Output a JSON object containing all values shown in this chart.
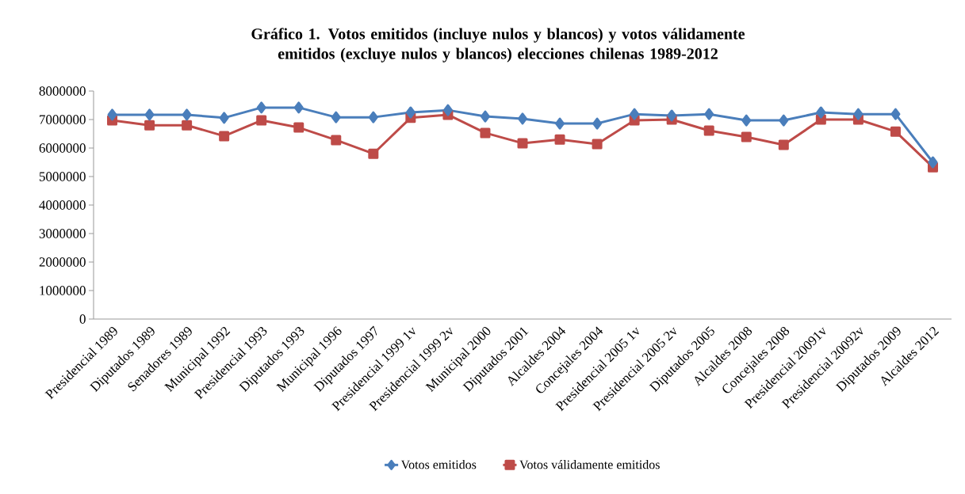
{
  "chart_data": {
    "type": "line",
    "title": "Gráfico 1. Votos emitidos (incluye nulos y blancos) y votos válidamente emitidos (excluye nulos y blancos) elecciones chilenas 1989-2012",
    "categories": [
      "Presidencial 1989",
      "Diputados 1989",
      "Senadores 1989",
      "Municipal 1992",
      "Presidencial 1993",
      "Diputados 1993",
      "Municipal 1996",
      "Diputados 1997",
      "Presidencial 1999 1v",
      "Presidencial 1999 2v",
      "Municipal 2000",
      "Diputados 2001",
      "Alcaldes 2004",
      "Concejales 2004",
      "Presidencial 2005 1v",
      "Presidencial 2005 2v",
      "Diputados 2005",
      "Alcaldes 2008",
      "Concejales 2008",
      "Presidencial 20091v",
      "Presidencial 20092v",
      "Diputados 2009",
      "Alcaldes 2012"
    ],
    "series": [
      {
        "name": "Votos emitidos",
        "color": "#4a7ebb",
        "marker": "diamond",
        "values": [
          7170000,
          7170000,
          7170000,
          7060000,
          7420000,
          7420000,
          7080000,
          7080000,
          7250000,
          7330000,
          7110000,
          7030000,
          6860000,
          6860000,
          7190000,
          7140000,
          7190000,
          6970000,
          6970000,
          7250000,
          7190000,
          7190000,
          5500000
        ]
      },
      {
        "name": "Votos válidamente emitidos",
        "color": "#be4b48",
        "marker": "square",
        "values": [
          6970000,
          6800000,
          6800000,
          6420000,
          6970000,
          6720000,
          6280000,
          5800000,
          7060000,
          7170000,
          6530000,
          6170000,
          6300000,
          6140000,
          6970000,
          7000000,
          6610000,
          6390000,
          6110000,
          7000000,
          7000000,
          6580000,
          5330000
        ]
      }
    ],
    "ylim": [
      0,
      8000000
    ],
    "yticks": [
      0,
      1000000,
      2000000,
      3000000,
      4000000,
      5000000,
      6000000,
      7000000,
      8000000
    ],
    "legend": "bottom",
    "grid": false
  }
}
